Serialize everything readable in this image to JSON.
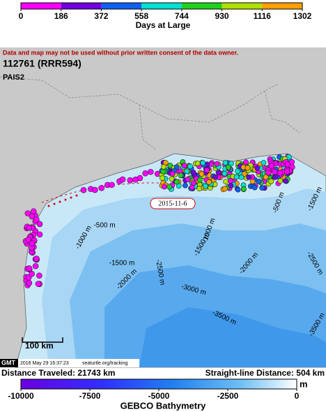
{
  "days_colorbar": {
    "title": "Days at Large",
    "ticks": [
      0,
      186,
      372,
      558,
      744,
      930,
      1116,
      1302
    ],
    "colors": [
      "#ff00ff",
      "#7000e0",
      "#1060f0",
      "#00e0d0",
      "#20d020",
      "#b0e000",
      "#ffa000"
    ]
  },
  "map": {
    "notice": "Data and map may not be used without prior written consent of the data owner.",
    "id": "112761 (RRR594)",
    "tag": "PAIS2",
    "date_label": "2015-11-6",
    "contour_labels": [
      "-500 m",
      "-1000 m",
      "-1500 m",
      "-2000 m",
      "-2500 m",
      "-3000 m",
      "-3500 m",
      "-1000 m",
      "-1500 m",
      "-2000 m",
      "-2500 m",
      "-500 m",
      "-1500 m",
      "-3500 m"
    ],
    "scale_label": "100 km",
    "footer": {
      "logo": "GMT",
      "timestamp": "2016 May 29 16:37:23",
      "url": "seaturtle.org/tracking"
    }
  },
  "distance_traveled": "Distance Traveled: 21743 km",
  "straight_line_distance": "Straight-line Distance: 504 km",
  "bathymetry_colorbar": {
    "title": "GEBCO Bathymetry",
    "unit": "m",
    "ticks": [
      -10000,
      -7500,
      -5000,
      -2500,
      0
    ]
  }
}
